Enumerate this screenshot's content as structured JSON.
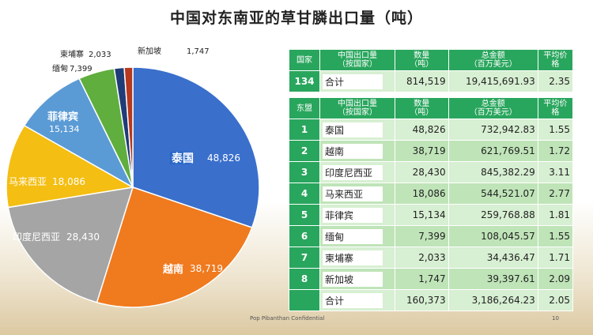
{
  "title": "中国对东南亚的草甘膦出口量（吨）",
  "chart_data": {
    "type": "pie",
    "title": "中国对东南亚的草甘膦出口量（吨）",
    "slices": [
      {
        "label": "泰国",
        "value": 48826,
        "color": "#3a6fcc"
      },
      {
        "label": "越南",
        "value": 38719,
        "color": "#f07a1e"
      },
      {
        "label": "印度尼西亚",
        "value": 28430,
        "color": "#a5a5a5"
      },
      {
        "label": "马来西亚",
        "value": 18086,
        "color": "#f4be12"
      },
      {
        "label": "菲律宾",
        "value": 15134,
        "color": "#5b9bd5"
      },
      {
        "label": "缅甸",
        "value": 7399,
        "color": "#5fae3e"
      },
      {
        "label": "柬埔寨",
        "value": 2033,
        "color": "#1f3c78"
      },
      {
        "label": "新加坡",
        "value": 1747,
        "color": "#b5381f"
      }
    ]
  },
  "pie_labels": {
    "thailand": {
      "name": "泰国",
      "value": "48,826"
    },
    "vietnam": {
      "name": "越南",
      "value": "38,719"
    },
    "indonesia": {
      "name": "印度尼西亚",
      "value": "28,430"
    },
    "malaysia": {
      "name": "马来西亚",
      "value": "18,086"
    },
    "philippines": {
      "name": "菲律宾",
      "value": "15,134"
    },
    "myanmar": {
      "name": "缅甸",
      "value": "7,399"
    },
    "cambodia": {
      "name": "柬埔寨",
      "value": "2,033"
    },
    "singapore": {
      "name": "新加坡",
      "value": "1,747"
    }
  },
  "table": {
    "header1": {
      "col1": "国家",
      "col2a": "中国出口量",
      "col2b": "（按国家）",
      "col3a": "数量",
      "col3b": "（吨）",
      "col4a": "总金额",
      "col4b": "（百万美元）",
      "col5a": "平均价",
      "col5b": "格"
    },
    "total_row": {
      "idx": "134",
      "name": "合计",
      "qty": "814,519",
      "amount": "19,415,691.93",
      "avg": "2.35"
    },
    "header2": {
      "col1": "东盟",
      "col2a": "中国出口量",
      "col2b": "（按国家）",
      "col3a": "数量",
      "col3b": "（吨）",
      "col4a": "总金额",
      "col4b": "（百万美元）",
      "col5a": "平均价",
      "col5b": "格"
    },
    "rows": [
      {
        "idx": "1",
        "name": "泰国",
        "qty": "48,826",
        "amount": "732,942.83",
        "avg": "1.55"
      },
      {
        "idx": "2",
        "name": "越南",
        "qty": "38,719",
        "amount": "621,769.51",
        "avg": "1.72"
      },
      {
        "idx": "3",
        "name": "印度尼西亚",
        "qty": "28,430",
        "amount": "845,382.29",
        "avg": "3.11"
      },
      {
        "idx": "4",
        "name": "马来西亚",
        "qty": "18,086",
        "amount": "544,521.07",
        "avg": "2.77"
      },
      {
        "idx": "5",
        "name": "菲律宾",
        "qty": "15,134",
        "amount": "259,768.88",
        "avg": "1.81"
      },
      {
        "idx": "6",
        "name": "缅甸",
        "qty": "7,399",
        "amount": "108,045.57",
        "avg": "1.55"
      },
      {
        "idx": "7",
        "name": "柬埔寨",
        "qty": "2,033",
        "amount": "34,436.47",
        "avg": "1.71"
      },
      {
        "idx": "8",
        "name": "新加坡",
        "qty": "1,747",
        "amount": "39,397.61",
        "avg": "2.09"
      }
    ],
    "asean_total": {
      "idx": "",
      "name": "合计",
      "qty": "160,373",
      "amount": "3,186,264.23",
      "avg": "2.05"
    }
  },
  "footer": "Pop Pibanthan Confidential",
  "page_number": "10"
}
